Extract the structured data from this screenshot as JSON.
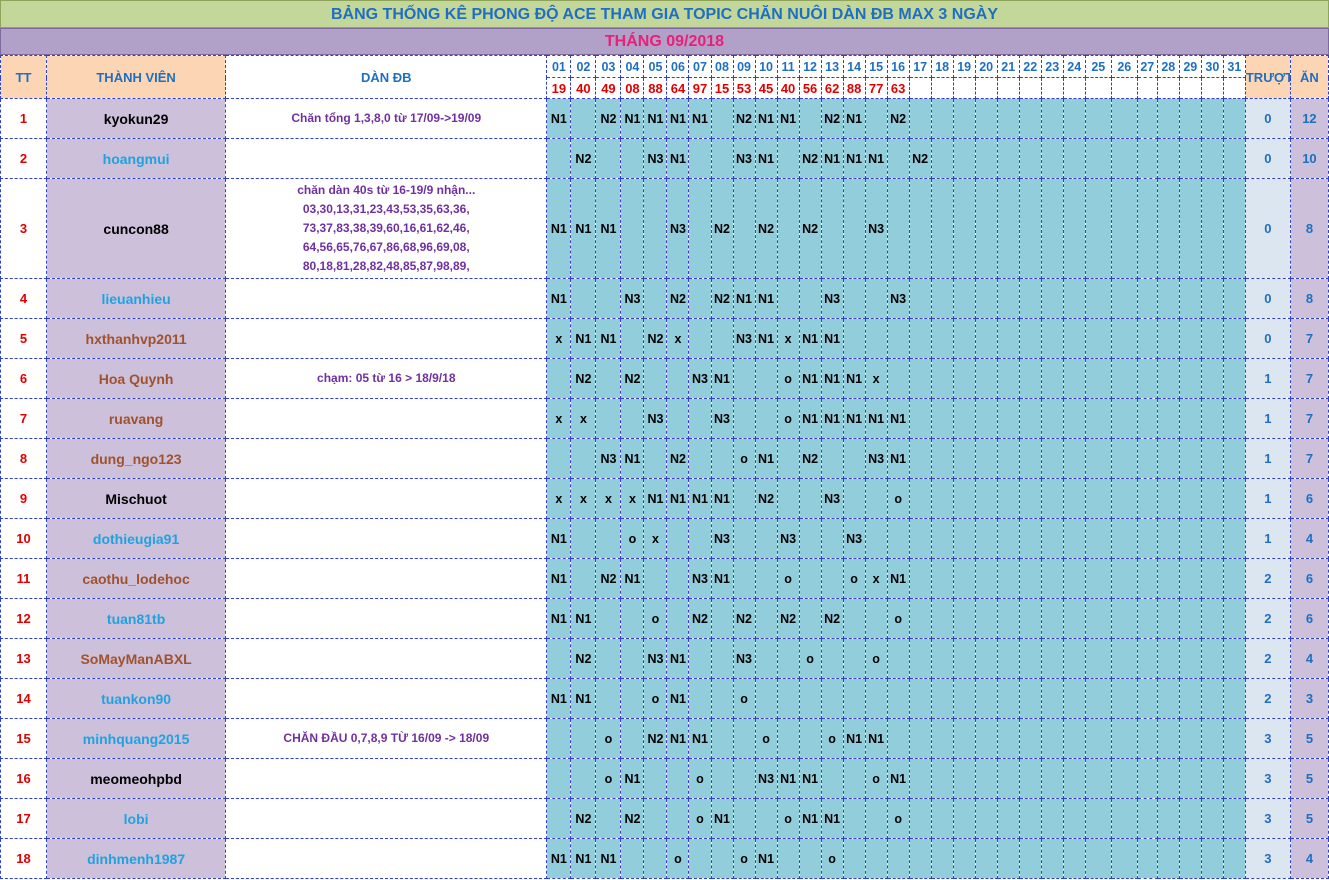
{
  "title": "BẢNG THỐNG KÊ PHONG ĐỘ ACE THAM GIA TOPIC CHĂN NUÔI DÀN ĐB MAX 3 NGÀY",
  "month": "THÁNG 09/2018",
  "headers": {
    "tt": "TT",
    "member": "THÀNH VIÊN",
    "dan": "DÀN ĐB",
    "truot": "TRƯỢT",
    "an": "ĂN"
  },
  "days": [
    "01",
    "02",
    "03",
    "04",
    "05",
    "06",
    "07",
    "08",
    "09",
    "10",
    "11",
    "12",
    "13",
    "14",
    "15",
    "16",
    "17",
    "18",
    "19",
    "20",
    "21",
    "22",
    "23",
    "24",
    "25",
    "26",
    "27",
    "28",
    "29",
    "30",
    "31"
  ],
  "results": [
    "19",
    "40",
    "49",
    "08",
    "88",
    "64",
    "97",
    "15",
    "53",
    "45",
    "40",
    "56",
    "62",
    "88",
    "77",
    "63",
    "",
    "",
    "",
    "",
    "",
    "",
    "",
    "",
    "",
    "",
    "",
    "",
    "",
    "",
    ""
  ],
  "colors": {
    "black": "#000000",
    "blue": "#1fa3e0",
    "brown": "#a0522d"
  },
  "rows": [
    {
      "tt": "1",
      "name": "kyokun29",
      "color": "black",
      "dan": "Chăn tổng 1,3,8,0 từ 17/09->19/09",
      "cells": [
        "N1",
        "",
        "N2",
        "N1",
        "N1",
        "N1",
        "N1",
        "",
        "N2",
        "N1",
        "N1",
        "",
        "N2",
        "N1",
        "",
        "N2"
      ],
      "truot": "0",
      "an": "12"
    },
    {
      "tt": "2",
      "name": "hoangmui",
      "color": "blue",
      "dan": "",
      "cells": [
        "",
        "N2",
        "",
        "",
        "N3",
        "N1",
        "",
        "",
        "N3",
        "N1",
        "",
        "N2",
        "N1",
        "N1",
        "N1",
        "",
        "N2"
      ],
      "truot": "0",
      "an": "10"
    },
    {
      "tt": "3",
      "name": "cuncon88",
      "color": "black",
      "dan": "chăn dàn 40s từ 16-19/9 nhận...\n03,30,13,31,23,43,53,35,63,36,\n73,37,83,38,39,60,16,61,62,46,\n64,56,65,76,67,86,68,96,69,08,\n80,18,81,28,82,48,85,87,98,89,",
      "cells": [
        "N1",
        "N1",
        "N1",
        "",
        "",
        "N3",
        "",
        "N2",
        "",
        "N2",
        "",
        "N2",
        "",
        "",
        "N3"
      ],
      "truot": "0",
      "an": "8",
      "tall": true
    },
    {
      "tt": "4",
      "name": "lieuanhieu",
      "color": "blue",
      "dan": "",
      "cells": [
        "N1",
        "",
        "",
        "N3",
        "",
        "N2",
        "",
        "N2",
        "N1",
        "N1",
        "",
        "",
        "N3",
        "",
        "",
        "N3"
      ],
      "truot": "0",
      "an": "8"
    },
    {
      "tt": "5",
      "name": "hxthanhvp2011",
      "color": "brown",
      "dan": "",
      "cells": [
        "x",
        "N1",
        "N1",
        "",
        "N2",
        "x",
        "",
        "",
        "N3",
        "N1",
        "x",
        "N1",
        "N1"
      ],
      "truot": "0",
      "an": "7"
    },
    {
      "tt": "6",
      "name": "Hoa Quynh",
      "color": "brown",
      "dan": "chạm: 05 từ 16 > 18/9/18",
      "cells": [
        "",
        "N2",
        "",
        "N2",
        "",
        "",
        "N3",
        "N1",
        "",
        "",
        "o",
        "N1",
        "N1",
        "N1",
        "x"
      ],
      "truot": "1",
      "an": "7"
    },
    {
      "tt": "7",
      "name": "ruavang",
      "color": "brown",
      "dan": "",
      "cells": [
        "x",
        "x",
        "",
        "",
        "N3",
        "",
        "",
        "N3",
        "",
        "",
        "o",
        "N1",
        "N1",
        "N1",
        "N1",
        "N1"
      ],
      "truot": "1",
      "an": "7"
    },
    {
      "tt": "8",
      "name": "dung_ngo123",
      "color": "brown",
      "dan": "",
      "cells": [
        "",
        "",
        "N3",
        "N1",
        "",
        "N2",
        "",
        "",
        "o",
        "N1",
        "",
        "N2",
        "",
        "",
        "N3",
        "N1"
      ],
      "truot": "1",
      "an": "7"
    },
    {
      "tt": "9",
      "name": "Mischuot",
      "color": "black",
      "dan": "",
      "cells": [
        "x",
        "x",
        "x",
        "x",
        "N1",
        "N1",
        "N1",
        "N1",
        "",
        "N2",
        "",
        "",
        "N3",
        "",
        "",
        "o"
      ],
      "truot": "1",
      "an": "6"
    },
    {
      "tt": "10",
      "name": "dothieugia91",
      "color": "blue",
      "dan": "",
      "cells": [
        "N1",
        "",
        "",
        "o",
        "x",
        "",
        "",
        "N3",
        "",
        "",
        "N3",
        "",
        "",
        "N3"
      ],
      "truot": "1",
      "an": "4"
    },
    {
      "tt": "11",
      "name": "caothu_lodehoc",
      "color": "brown",
      "dan": "",
      "cells": [
        "N1",
        "",
        "N2",
        "N1",
        "",
        "",
        "N3",
        "N1",
        "",
        "",
        "o",
        "",
        "",
        "o",
        "x",
        "N1"
      ],
      "truot": "2",
      "an": "6"
    },
    {
      "tt": "12",
      "name": "tuan81tb",
      "color": "blue",
      "dan": "",
      "cells": [
        "N1",
        "N1",
        "",
        "",
        "o",
        "",
        "N2",
        "",
        "N2",
        "",
        "N2",
        "",
        "N2",
        "",
        "",
        "o"
      ],
      "truot": "2",
      "an": "6"
    },
    {
      "tt": "13",
      "name": "SoMayManABXL",
      "color": "brown",
      "dan": "",
      "cells": [
        "",
        "N2",
        "",
        "",
        "N3",
        "N1",
        "",
        "",
        "N3",
        "",
        "",
        "o",
        "",
        "",
        "o"
      ],
      "truot": "2",
      "an": "4"
    },
    {
      "tt": "14",
      "name": "tuankon90",
      "color": "blue",
      "dan": "",
      "cells": [
        "N1",
        "N1",
        "",
        "",
        "o",
        "N1",
        "",
        "",
        "o"
      ],
      "truot": "2",
      "an": "3"
    },
    {
      "tt": "15",
      "name": "minhquang2015",
      "color": "blue",
      "dan": "CHĂN ĐẦU 0,7,8,9 TỪ 16/09 -> 18/09",
      "cells": [
        "",
        "",
        "o",
        "",
        "N2",
        "N1",
        "N1",
        "",
        "",
        "o",
        "",
        "",
        "o",
        "N1",
        "N1"
      ],
      "truot": "3",
      "an": "5"
    },
    {
      "tt": "16",
      "name": "meomeohpbd",
      "color": "black",
      "dan": "",
      "cells": [
        "",
        "",
        "o",
        "N1",
        "",
        "",
        "o",
        "",
        "",
        "N3",
        "N1",
        "N1",
        "",
        "",
        "o",
        "N1"
      ],
      "truot": "3",
      "an": "5"
    },
    {
      "tt": "17",
      "name": "lobi",
      "color": "blue",
      "dan": "",
      "cells": [
        "",
        "N2",
        "",
        "N2",
        "",
        "",
        "o",
        "N1",
        "",
        "",
        "o",
        "N1",
        "N1",
        "",
        "",
        "o"
      ],
      "truot": "3",
      "an": "5"
    },
    {
      "tt": "18",
      "name": "dinhmenh1987",
      "color": "blue",
      "dan": "",
      "cells": [
        "N1",
        "N1",
        "N1",
        "",
        "",
        "o",
        "",
        "",
        "o",
        "N1",
        "",
        "",
        "o"
      ],
      "truot": "3",
      "an": "4"
    }
  ]
}
